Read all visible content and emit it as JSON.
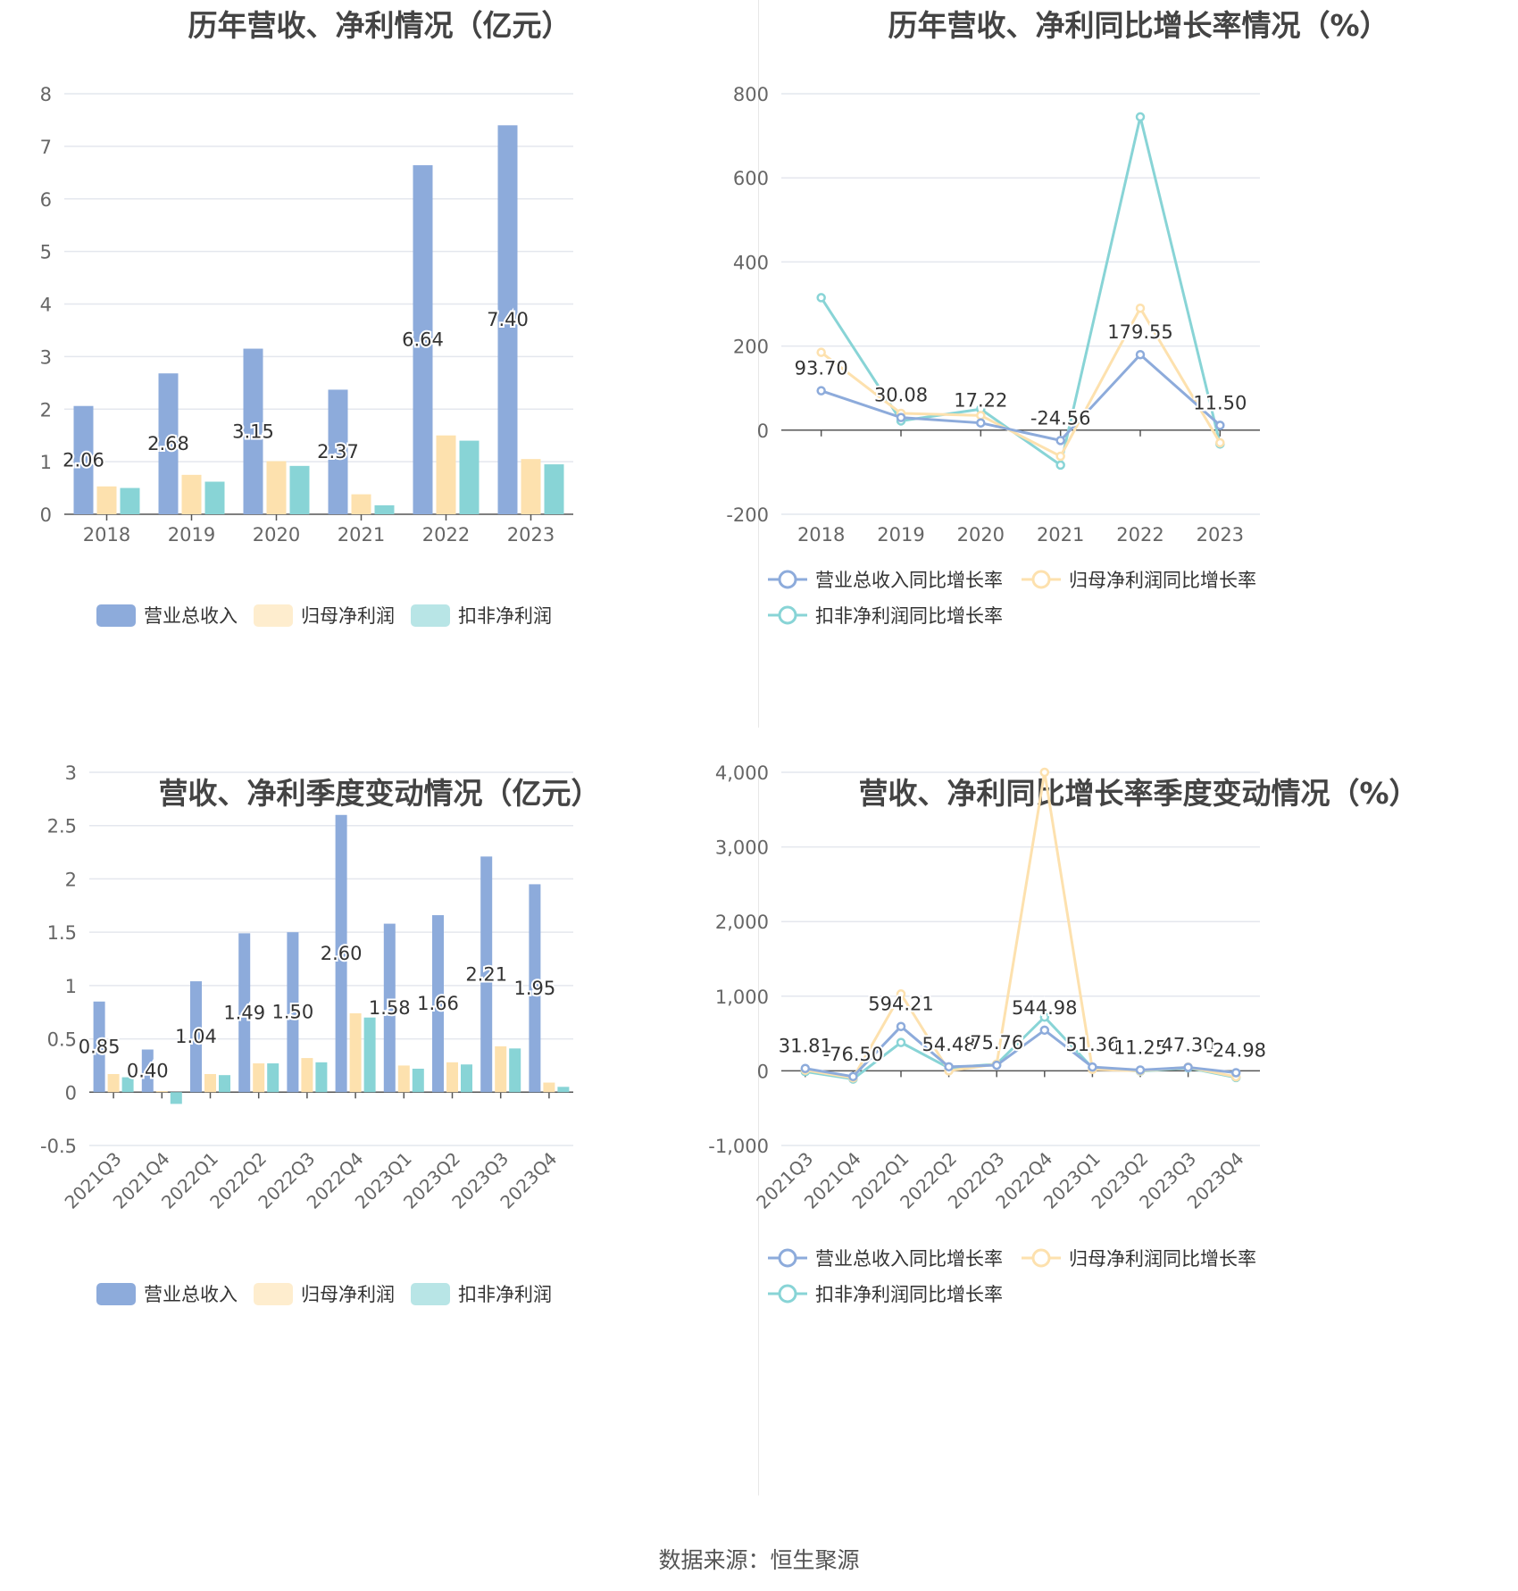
{
  "colors": {
    "revenue": "#8dabdb",
    "profit": "#fde1ae",
    "deducted": "#88d4d6",
    "grid": "#e4e7ee",
    "axis": "#555",
    "text": "#666",
    "label": "#333"
  },
  "source": "数据来源：恒生聚源",
  "chart_data": [
    {
      "id": "annual_amount",
      "type": "bar",
      "title": "历年营收、净利情况（亿元）",
      "categories": [
        "2018",
        "2019",
        "2020",
        "2021",
        "2022",
        "2023"
      ],
      "series": [
        {
          "name": "营业总收入",
          "values": [
            2.06,
            2.68,
            3.15,
            2.37,
            6.64,
            7.4
          ],
          "labels": [
            "2.06",
            "2.68",
            "3.15",
            "2.37",
            "6.64",
            "7.40"
          ]
        },
        {
          "name": "归母净利润",
          "values": [
            0.53,
            0.75,
            1.01,
            0.38,
            1.5,
            1.05
          ]
        },
        {
          "name": "扣非净利润",
          "values": [
            0.5,
            0.62,
            0.92,
            0.17,
            1.4,
            0.95
          ]
        }
      ],
      "ylim": [
        0,
        8
      ],
      "yticks": [
        0,
        1,
        2,
        3,
        4,
        5,
        6,
        7,
        8
      ],
      "ytick_labels": [
        "0",
        "1",
        "2",
        "3",
        "4",
        "5",
        "6",
        "7",
        "8"
      ],
      "legend": "bottom"
    },
    {
      "id": "annual_growth",
      "type": "line",
      "title": "历年营收、净利同比增长率情况（%）",
      "categories": [
        "2018",
        "2019",
        "2020",
        "2021",
        "2022",
        "2023"
      ],
      "series": [
        {
          "name": "营业总收入同比增长率",
          "values": [
            93.7,
            30.08,
            17.22,
            -24.56,
            179.55,
            11.5
          ],
          "labels": [
            "93.70",
            "30.08",
            "17.22",
            "-24.56",
            "179.55",
            "11.50"
          ]
        },
        {
          "name": "归母净利润同比增长率",
          "values": [
            185,
            40,
            35,
            -62,
            290,
            -30
          ]
        },
        {
          "name": "扣非净利润同比增长率",
          "values": [
            315,
            22,
            50,
            -83,
            745,
            -33
          ]
        }
      ],
      "ylim": [
        -200,
        800
      ],
      "yticks": [
        -200,
        0,
        200,
        400,
        600,
        800
      ],
      "ytick_labels": [
        "-200",
        "0",
        "200",
        "400",
        "600",
        "800"
      ],
      "legend": "bottom"
    },
    {
      "id": "quarter_amount",
      "type": "bar",
      "title": "营收、净利季度变动情况（亿元）",
      "categories": [
        "2021Q3",
        "2021Q4",
        "2022Q1",
        "2022Q2",
        "2022Q3",
        "2022Q4",
        "2023Q1",
        "2023Q2",
        "2023Q3",
        "2023Q4"
      ],
      "series": [
        {
          "name": "营业总收入",
          "values": [
            0.85,
            0.4,
            1.04,
            1.49,
            1.5,
            2.6,
            1.58,
            1.66,
            2.21,
            1.95
          ],
          "labels": [
            "0.85",
            "0.40",
            "1.04",
            "1.49",
            "1.50",
            "2.60",
            "1.58",
            "1.66",
            "2.21",
            "1.95"
          ]
        },
        {
          "name": "归母净利润",
          "values": [
            0.17,
            0.01,
            0.17,
            0.27,
            0.32,
            0.74,
            0.25,
            0.28,
            0.43,
            0.09
          ]
        },
        {
          "name": "扣非净利润",
          "values": [
            0.14,
            -0.11,
            0.16,
            0.27,
            0.28,
            0.7,
            0.22,
            0.26,
            0.41,
            0.05
          ]
        }
      ],
      "ylim": [
        -0.5,
        3
      ],
      "yticks": [
        -0.5,
        0,
        0.5,
        1,
        1.5,
        2,
        2.5,
        3
      ],
      "ytick_labels": [
        "-0.5",
        "0",
        "0.5",
        "1",
        "1.5",
        "2",
        "2.5",
        "3"
      ],
      "legend": "bottom"
    },
    {
      "id": "quarter_growth",
      "type": "line",
      "title": "营收、净利同比增长率季度变动情况（%）",
      "categories": [
        "2021Q3",
        "2021Q4",
        "2022Q1",
        "2022Q2",
        "2022Q3",
        "2022Q4",
        "2023Q1",
        "2023Q2",
        "2023Q3",
        "2023Q4"
      ],
      "series": [
        {
          "name": "营业总收入同比增长率",
          "values": [
            31.81,
            -76.5,
            594.21,
            54.48,
            75.76,
            544.98,
            51.36,
            11.25,
            47.3,
            -24.98
          ],
          "labels": [
            "31.81",
            "-76.50",
            "594.21",
            "54.48",
            "75.76",
            "544.98",
            "51.36",
            "11.25",
            "47.30",
            "-24.98"
          ]
        },
        {
          "name": "归母净利润同比增长率",
          "values": [
            10,
            -95,
            1030,
            0,
            90,
            4000,
            20,
            0,
            50,
            -80
          ]
        },
        {
          "name": "扣非净利润同比增长率",
          "values": [
            -10,
            -110,
            380,
            40,
            90,
            720,
            40,
            -5,
            40,
            -90
          ]
        }
      ],
      "ylim": [
        -1000,
        4000
      ],
      "yticks": [
        -1000,
        0,
        1000,
        2000,
        3000,
        4000
      ],
      "ytick_labels": [
        "-1,000",
        "0",
        "1,000",
        "2,000",
        "3,000",
        "4,000"
      ],
      "legend": "bottom"
    }
  ]
}
